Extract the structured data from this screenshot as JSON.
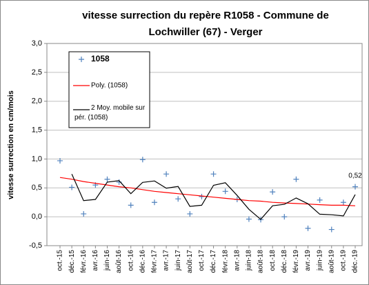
{
  "chart_data": {
    "type": "line",
    "title": [
      "vitesse surrection du repère R1058 - Commune de",
      "Lochwiller (67) - Verger"
    ],
    "y_label": "vitesse surrection en cm/mois",
    "categories": [
      "oct.-15",
      "déc.-15",
      "févr.-16",
      "avr.-16",
      "juin-16",
      "août-16",
      "oct.-16",
      "déc.-16",
      "févr.-17",
      "avr.-17",
      "juin-17",
      "août-17",
      "oct.-17",
      "déc.-17",
      "févr.-18",
      "avr.-18",
      "juin-18",
      "août-18",
      "oct.-18",
      "déc.-18",
      "févr.-19",
      "avr.-19",
      "juin-19",
      "août-19",
      "oct.-19",
      "déc.-19"
    ],
    "series": [
      {
        "name": "1058",
        "color": "#4f81bd",
        "marker": "+",
        "values": [
          0.97,
          0.51,
          0.05,
          0.55,
          0.65,
          0.6,
          0.2,
          0.99,
          0.25,
          0.74,
          0.31,
          0.05,
          0.35,
          0.74,
          0.44,
          0.3,
          -0.04,
          -0.05,
          0.43,
          0.0,
          0.65,
          -0.2,
          0.29,
          -0.22,
          0.25,
          0.52
        ],
        "value_labels": [
          null,
          null,
          null,
          null,
          null,
          null,
          null,
          null,
          null,
          null,
          null,
          null,
          null,
          null,
          null,
          null,
          null,
          null,
          null,
          null,
          null,
          null,
          null,
          null,
          null,
          "0,52"
        ]
      },
      {
        "name": "Poly. (1058)",
        "color": "#ff0000",
        "values": [
          0.68,
          0.65,
          0.61,
          0.58,
          0.55,
          0.52,
          0.5,
          0.47,
          0.44,
          0.42,
          0.4,
          0.38,
          0.36,
          0.34,
          0.32,
          0.3,
          0.28,
          0.27,
          0.25,
          0.24,
          0.23,
          0.22,
          0.21,
          0.2,
          0.2,
          0.19
        ]
      },
      {
        "name": "2 Moy. mobile sur pér. (1058)",
        "color": "#000000",
        "values": [
          null,
          0.74,
          0.28,
          0.3,
          0.6,
          0.625,
          0.4,
          0.595,
          0.62,
          0.495,
          0.525,
          0.18,
          0.2,
          0.545,
          0.59,
          0.37,
          0.13,
          -0.045,
          0.19,
          0.215,
          0.325,
          0.225,
          0.045,
          0.035,
          0.015,
          0.385
        ]
      }
    ],
    "ylim": [
      -0.5,
      3.0
    ],
    "yticks": [
      {
        "value": -0.5,
        "label": "-0,5"
      },
      {
        "value": 0,
        "label": "0,0"
      },
      {
        "value": 0.5,
        "label": "0,5"
      },
      {
        "value": 1.0,
        "label": "1,0"
      },
      {
        "value": 1.5,
        "label": "1,5"
      },
      {
        "value": 2.0,
        "label": "2,0"
      },
      {
        "value": 2.5,
        "label": "2,5"
      },
      {
        "value": 3.0,
        "label": "3,0"
      }
    ],
    "grid": true,
    "legend": "upper left"
  }
}
